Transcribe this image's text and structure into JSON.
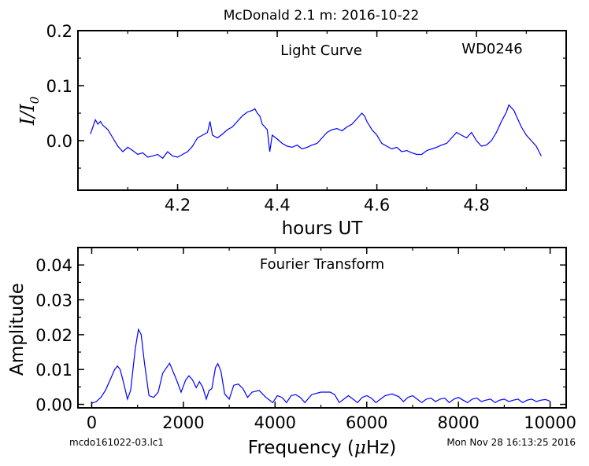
{
  "figure": {
    "title": "McDonald 2.1 m:  2016-10-22",
    "footer_left": "mcdo161022-03.lc1",
    "footer_right": "Mon Nov 28 16:13:25 2016",
    "line_color": "#0000ff"
  },
  "chart_data": [
    {
      "type": "line",
      "panel": "top",
      "title": "Light Curve",
      "annotation": "WD0246",
      "xlabel": "hours UT",
      "ylabel_main": "I/I",
      "ylabel_sub": "0",
      "xlim": [
        4.0,
        4.98
      ],
      "ylim": [
        -0.09,
        0.2
      ],
      "xticks": [
        4.2,
        4.4,
        4.6,
        4.8
      ],
      "xtick_labels": [
        "4.2",
        "4.4",
        "4.6",
        "4.8"
      ],
      "yticks": [
        0.0,
        0.1,
        0.2
      ],
      "ytick_labels": [
        "0.0",
        "0.1",
        "0.2"
      ],
      "grid": false,
      "series": [
        {
          "x": [
            4.025,
            4.03,
            4.035,
            4.04,
            4.045,
            4.05,
            4.06,
            4.07,
            4.08,
            4.09,
            4.1,
            4.11,
            4.12,
            4.13,
            4.14,
            4.15,
            4.16,
            4.17,
            4.18,
            4.19,
            4.2,
            4.21,
            4.22,
            4.23,
            4.24,
            4.25,
            4.26,
            4.265,
            4.27,
            4.28,
            4.29,
            4.3,
            4.31,
            4.32,
            4.33,
            4.34,
            4.35,
            4.355,
            4.36,
            4.365,
            4.37,
            4.38,
            4.385,
            4.39,
            4.4,
            4.41,
            4.42,
            4.43,
            4.44,
            4.45,
            4.46,
            4.47,
            4.48,
            4.49,
            4.5,
            4.51,
            4.52,
            4.53,
            4.54,
            4.55,
            4.56,
            4.57,
            4.575,
            4.58,
            4.59,
            4.6,
            4.61,
            4.62,
            4.63,
            4.64,
            4.65,
            4.66,
            4.67,
            4.68,
            4.69,
            4.7,
            4.71,
            4.72,
            4.73,
            4.74,
            4.75,
            4.76,
            4.77,
            4.78,
            4.79,
            4.8,
            4.81,
            4.82,
            4.83,
            4.84,
            4.85,
            4.86,
            4.865,
            4.87,
            4.875,
            4.88,
            4.89,
            4.9,
            4.91,
            4.92,
            4.93
          ],
          "y": [
            0.012,
            0.025,
            0.038,
            0.03,
            0.035,
            0.028,
            0.02,
            0.005,
            -0.01,
            -0.02,
            -0.012,
            -0.018,
            -0.025,
            -0.022,
            -0.03,
            -0.028,
            -0.025,
            -0.032,
            -0.02,
            -0.028,
            -0.03,
            -0.025,
            -0.02,
            -0.01,
            0.005,
            0.01,
            0.015,
            0.035,
            0.01,
            0.005,
            0.012,
            0.02,
            0.025,
            0.035,
            0.045,
            0.052,
            0.055,
            0.058,
            0.05,
            0.045,
            0.03,
            0.02,
            -0.02,
            0.01,
            0.003,
            -0.005,
            -0.01,
            -0.012,
            -0.008,
            -0.015,
            -0.012,
            -0.008,
            -0.005,
            0.005,
            0.015,
            0.02,
            0.022,
            0.018,
            0.025,
            0.03,
            0.04,
            0.05,
            0.045,
            0.035,
            0.02,
            0.01,
            -0.005,
            -0.01,
            -0.015,
            -0.012,
            -0.02,
            -0.018,
            -0.022,
            -0.025,
            -0.025,
            -0.018,
            -0.015,
            -0.012,
            -0.008,
            -0.005,
            0.005,
            0.015,
            0.01,
            0.005,
            0.015,
            0.0,
            -0.01,
            -0.008,
            0.0,
            0.015,
            0.035,
            0.052,
            0.065,
            0.06,
            0.055,
            0.045,
            0.025,
            0.01,
            0.0,
            -0.01,
            -0.028
          ]
        }
      ]
    },
    {
      "type": "line",
      "panel": "bottom",
      "title": "Fourier Transform",
      "xlabel_pre": "Frequency (",
      "xlabel_mu": "μ",
      "xlabel_post": "Hz)",
      "ylabel": "Amplitude",
      "xlim": [
        -300,
        10350
      ],
      "ylim": [
        -0.001,
        0.045
      ],
      "xticks": [
        0,
        2000,
        4000,
        6000,
        8000,
        10000
      ],
      "xtick_labels": [
        "0",
        "2000",
        "4000",
        "6000",
        "8000",
        "10000"
      ],
      "yticks": [
        0.0,
        0.01,
        0.02,
        0.03,
        0.04
      ],
      "ytick_labels": [
        "0.00",
        "0.01",
        "0.02",
        "0.03",
        "0.04"
      ],
      "grid": false,
      "series": [
        {
          "x": [
            0,
            100,
            200,
            300,
            400,
            500,
            560,
            620,
            700,
            780,
            850,
            950,
            1020,
            1080,
            1150,
            1250,
            1350,
            1450,
            1550,
            1700,
            1850,
            1950,
            2050,
            2120,
            2200,
            2280,
            2350,
            2420,
            2500,
            2560,
            2620,
            2700,
            2750,
            2820,
            2900,
            3000,
            3100,
            3200,
            3300,
            3400,
            3500,
            3650,
            3800,
            3950,
            4050,
            4150,
            4250,
            4350,
            4450,
            4550,
            4650,
            4800,
            5000,
            5200,
            5300,
            5400,
            5500,
            5600,
            5700,
            5800,
            5900,
            6000,
            6100,
            6200,
            6300,
            6400,
            6550,
            6700,
            6800,
            6900,
            7000,
            7100,
            7200,
            7300,
            7400,
            7500,
            7600,
            7700,
            7800,
            7900,
            8000,
            8100,
            8200,
            8300,
            8400,
            8500,
            8600,
            8700,
            8800,
            8900,
            9000,
            9100,
            9200,
            9300,
            9400,
            9500,
            9600,
            9700,
            9800,
            9900,
            10000
          ],
          "y": [
            0.0003,
            0.0008,
            0.002,
            0.004,
            0.007,
            0.01,
            0.011,
            0.01,
            0.006,
            0.0015,
            0.004,
            0.016,
            0.0215,
            0.02,
            0.012,
            0.0025,
            0.002,
            0.0035,
            0.009,
            0.0118,
            0.007,
            0.0035,
            0.007,
            0.0082,
            0.007,
            0.0048,
            0.0065,
            0.005,
            0.0015,
            0.004,
            0.0045,
            0.0105,
            0.0117,
            0.0095,
            0.003,
            0.0015,
            0.0055,
            0.0058,
            0.0045,
            0.002,
            0.0035,
            0.004,
            0.002,
            0.0005,
            0.0025,
            0.002,
            0.0005,
            0.0025,
            0.0028,
            0.002,
            0.0005,
            0.0028,
            0.0035,
            0.0035,
            0.0028,
            0.0005,
            0.0015,
            0.0025,
            0.0015,
            0.0005,
            0.002,
            0.0025,
            0.0018,
            0.0005,
            0.0015,
            0.0025,
            0.003,
            0.0022,
            0.0008,
            0.002,
            0.0025,
            0.0015,
            0.0005,
            0.0015,
            0.0018,
            0.0008,
            0.0015,
            0.0018,
            0.0005,
            0.0015,
            0.002,
            0.0012,
            0.0005,
            0.0015,
            0.0018,
            0.0008,
            0.0012,
            0.0015,
            0.0005,
            0.0012,
            0.0015,
            0.0008,
            0.0012,
            0.0015,
            0.0005,
            0.0012,
            0.0015,
            0.0008,
            0.0012,
            0.0014,
            0.0009
          ]
        }
      ]
    }
  ]
}
